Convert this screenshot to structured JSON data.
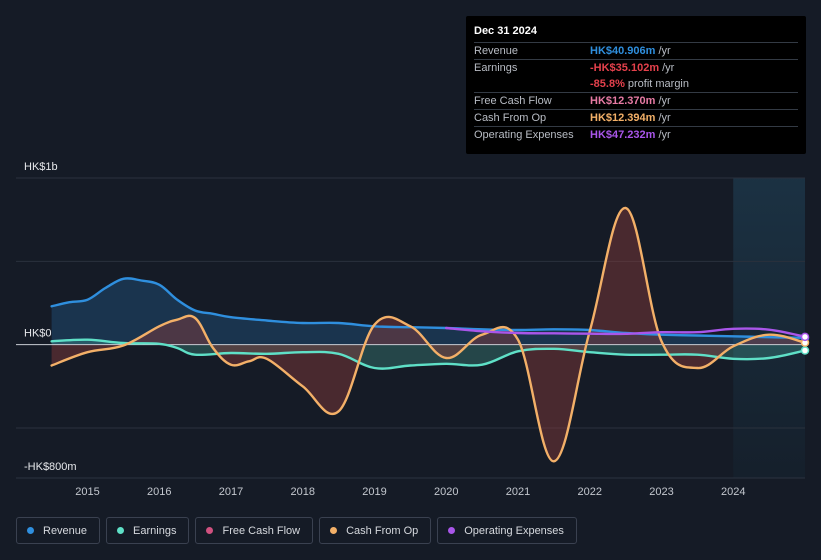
{
  "tooltip": {
    "date": "Dec 31 2024",
    "rows": [
      {
        "label": "Revenue",
        "value": "HK$40.906m",
        "unit": "/yr",
        "color": "#2f8fde"
      },
      {
        "label": "Earnings",
        "value": "-HK$35.102m",
        "unit": "/yr",
        "color": "#e5414c"
      },
      {
        "label": "",
        "value": "-85.8%",
        "unit": "profit margin",
        "color": "#e5414c"
      },
      {
        "label": "Free Cash Flow",
        "value": "HK$12.370m",
        "unit": "/yr",
        "color": "#e77ba4"
      },
      {
        "label": "Cash From Op",
        "value": "HK$12.394m",
        "unit": "/yr",
        "color": "#f3b068"
      },
      {
        "label": "Operating Expenses",
        "value": "HK$47.232m",
        "unit": "/yr",
        "color": "#a956ea"
      }
    ]
  },
  "legend": [
    {
      "label": "Revenue",
      "color": "#2f8fde"
    },
    {
      "label": "Earnings",
      "color": "#5fe0c7"
    },
    {
      "label": "Free Cash Flow",
      "color": "#d0517f"
    },
    {
      "label": "Cash From Op",
      "color": "#f3b068"
    },
    {
      "label": "Operating Expenses",
      "color": "#a956ea"
    }
  ],
  "chart_data": {
    "type": "line",
    "title": "",
    "ylabel": "",
    "unit": "HK$m",
    "ylim": [
      -800,
      1000
    ],
    "y_ticks": [
      {
        "value": 1000,
        "label": "HK$1b"
      },
      {
        "value": 0,
        "label": "HK$0"
      },
      {
        "value": -800,
        "label": "-HK$800m"
      }
    ],
    "gridlines": [
      1000,
      500,
      0,
      -500
    ],
    "xlim": [
      2014.45,
      2025.0
    ],
    "x_ticks": [
      2015,
      2016,
      2017,
      2018,
      2019,
      2020,
      2021,
      2022,
      2023,
      2024
    ],
    "forecast_start": 2024.0,
    "series": [
      {
        "name": "Revenue",
        "color": "#2f8fde",
        "fill": true,
        "x": [
          2014.5,
          2014.75,
          2015.0,
          2015.25,
          2015.5,
          2015.75,
          2016.0,
          2016.25,
          2016.5,
          2016.75,
          2017.0,
          2017.5,
          2018.0,
          2018.5,
          2019.0,
          2019.5,
          2020.0,
          2020.5,
          2021.0,
          2021.5,
          2022.0,
          2022.5,
          2023.0,
          2023.5,
          2024.0,
          2024.5,
          2025.0
        ],
        "y": [
          230,
          255,
          270,
          340,
          395,
          385,
          360,
          270,
          205,
          185,
          165,
          145,
          130,
          130,
          110,
          105,
          100,
          92,
          88,
          92,
          88,
          70,
          60,
          55,
          50,
          45,
          41
        ]
      },
      {
        "name": "Earnings",
        "color": "#5fe0c7",
        "fill": true,
        "x": [
          2014.5,
          2015.0,
          2015.5,
          2016.0,
          2016.25,
          2016.5,
          2017.0,
          2017.5,
          2018.0,
          2018.5,
          2019.0,
          2019.5,
          2020.0,
          2020.5,
          2021.0,
          2021.5,
          2022.0,
          2022.5,
          2023.0,
          2023.5,
          2024.0,
          2024.5,
          2025.0
        ],
        "y": [
          20,
          30,
          10,
          5,
          -20,
          -60,
          -50,
          -55,
          -45,
          -55,
          -140,
          -125,
          -115,
          -120,
          -40,
          -25,
          -45,
          -60,
          -60,
          -60,
          -85,
          -80,
          -35
        ]
      },
      {
        "name": "Cash From Op",
        "color": "#f3b068",
        "fill": true,
        "x": [
          2014.5,
          2015.0,
          2015.5,
          2016.0,
          2016.25,
          2016.5,
          2016.75,
          2017.0,
          2017.25,
          2017.5,
          2018.0,
          2018.5,
          2019.0,
          2019.5,
          2020.0,
          2020.5,
          2021.0,
          2021.5,
          2022.0,
          2022.5,
          2023.0,
          2023.5,
          2024.0,
          2024.5,
          2025.0
        ],
        "y": [
          -125,
          -45,
          -5,
          110,
          150,
          160,
          -20,
          -120,
          -100,
          -85,
          -250,
          -400,
          120,
          110,
          -80,
          60,
          30,
          -700,
          80,
          820,
          20,
          -140,
          -10,
          60,
          12
        ]
      },
      {
        "name": "Operating Expenses",
        "color": "#a956ea",
        "fill": false,
        "x": [
          2020.0,
          2020.5,
          2021.0,
          2021.5,
          2022.0,
          2022.5,
          2023.0,
          2023.5,
          2024.0,
          2024.5,
          2025.0
        ],
        "y": [
          100,
          80,
          70,
          68,
          66,
          65,
          75,
          75,
          95,
          90,
          47
        ]
      }
    ]
  }
}
